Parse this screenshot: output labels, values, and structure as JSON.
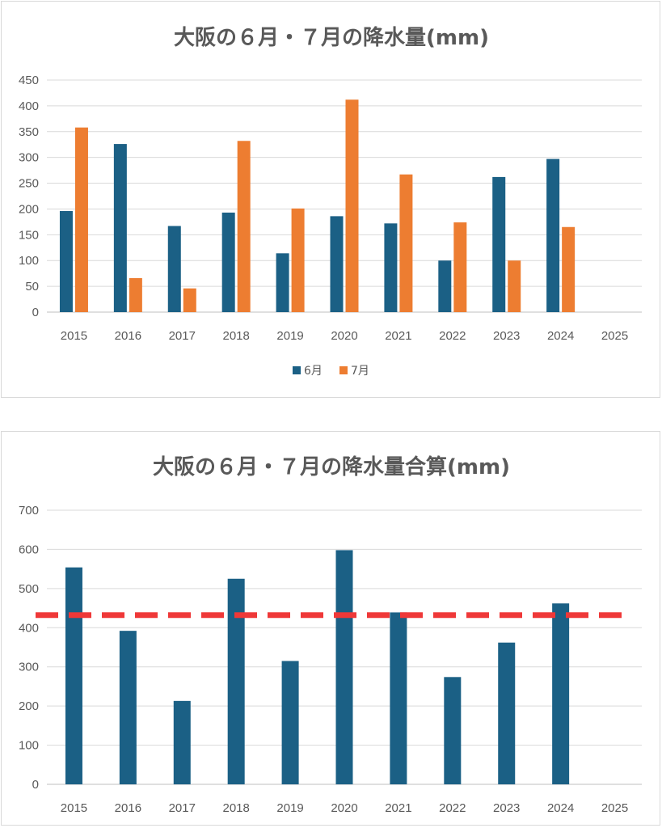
{
  "chart_data": [
    {
      "type": "bar",
      "title": "大阪の６月・７月の降水量(mm)",
      "categories": [
        "2015",
        "2016",
        "2017",
        "2018",
        "2019",
        "2020",
        "2021",
        "2022",
        "2023",
        "2024",
        "2025"
      ],
      "series": [
        {
          "name": "6月",
          "color": "#1b6085",
          "values": [
            196,
            326,
            167,
            193,
            114,
            186,
            172,
            100,
            262,
            297,
            null
          ]
        },
        {
          "name": "7月",
          "color": "#ed7d31",
          "values": [
            358,
            66,
            46,
            332,
            201,
            412,
            267,
            174,
            100,
            165,
            null
          ]
        }
      ],
      "ylim": [
        0,
        450
      ],
      "yticks": [
        0,
        50,
        100,
        150,
        200,
        250,
        300,
        350,
        400,
        450
      ],
      "grid": true,
      "legend": "bottom"
    },
    {
      "type": "bar",
      "title": "大阪の６月・７月の降水量合算(mm)",
      "categories": [
        "2015",
        "2016",
        "2017",
        "2018",
        "2019",
        "2020",
        "2021",
        "2022",
        "2023",
        "2024",
        "2025"
      ],
      "series": [
        {
          "color": "#1b6085",
          "values": [
            554,
            392,
            213,
            525,
            315,
            598,
            439,
            274,
            362,
            462,
            null
          ]
        }
      ],
      "reference_line": {
        "value": 432,
        "color": "#ef3838",
        "style": "dashed"
      },
      "ylim": [
        0,
        700
      ],
      "yticks": [
        0,
        100,
        200,
        300,
        400,
        500,
        600,
        700
      ],
      "grid": true
    }
  ]
}
